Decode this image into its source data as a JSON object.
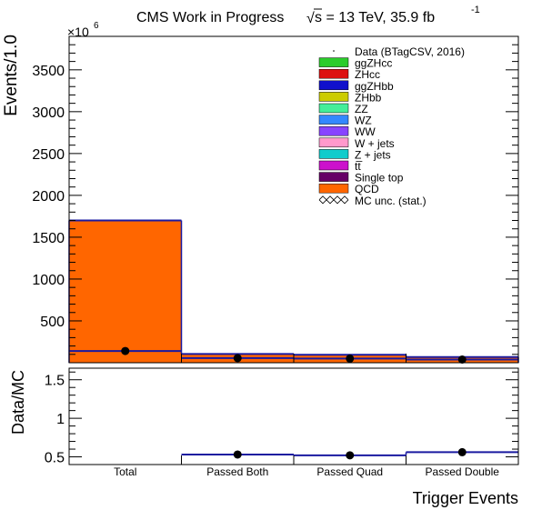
{
  "chart_data": [
    {
      "type": "bar",
      "title": "CMS Work in Progress",
      "subtitle": {
        "sqrt": "√",
        "s": "s = 13 TeV, 35.9 fb",
        "exp": "-1"
      },
      "ylabel": "Events/1.0",
      "y_multiplier": {
        "base": "×10",
        "exp": "6"
      },
      "ylim": [
        0,
        3900
      ],
      "yticks": [
        500,
        1000,
        1500,
        2000,
        2500,
        3000,
        3500
      ],
      "categories": [
        "Total",
        "Passed Both",
        "Passed Quad",
        "Passed Double"
      ],
      "stack_total": [
        1700,
        105,
        95,
        68
      ],
      "series": [
        {
          "name": "ggZHcc",
          "color": "#2bcc2b",
          "values": [
            0,
            0,
            0,
            0
          ]
        },
        {
          "name": "ZHcc",
          "color": "#dd1111",
          "values": [
            0,
            0,
            0,
            0
          ]
        },
        {
          "name": "ggZHbb",
          "color": "#1010cc",
          "values": [
            0,
            0,
            0,
            0
          ]
        },
        {
          "name": "ZHbb",
          "color": "#cccc00",
          "values": [
            0,
            0,
            0,
            0
          ]
        },
        {
          "name": "ZZ",
          "color": "#44ee99",
          "values": [
            0,
            0,
            0,
            0
          ]
        },
        {
          "name": "WZ",
          "color": "#3388ff",
          "values": [
            0,
            0,
            0,
            0
          ]
        },
        {
          "name": "WW",
          "color": "#8844ff",
          "values": [
            0,
            0,
            0,
            0
          ]
        },
        {
          "name": "W + jets",
          "color": "#ff99cc",
          "values": [
            0,
            0,
            0,
            0
          ]
        },
        {
          "name": "Z + jets",
          "color": "#11cccc",
          "values": [
            0,
            0,
            0,
            0
          ]
        },
        {
          "name": "tt̅",
          "color": "#cc11cc",
          "values": [
            0,
            0,
            0,
            0
          ]
        },
        {
          "name": "Single top",
          "color": "#660066",
          "values": [
            0,
            0,
            0,
            0
          ]
        },
        {
          "name": "QCD",
          "color": "#ff6600",
          "values": [
            1700,
            105,
            95,
            68
          ]
        }
      ],
      "data": {
        "name": "Data (BTagCSV, 2016)",
        "values": [
          140,
          55,
          50,
          38
        ]
      },
      "mc_unc": {
        "name": "MC unc. (stat.)"
      }
    },
    {
      "type": "scatter",
      "ylabel": "Data/MC",
      "xlabel": "Trigger Events",
      "ylim": [
        0.4,
        1.65
      ],
      "yticks": [
        0.5,
        1,
        1.5
      ],
      "categories": [
        "Total",
        "Passed Both",
        "Passed Quad",
        "Passed Double"
      ],
      "ratio": [
        null,
        0.53,
        0.52,
        0.56
      ]
    }
  ],
  "colors": {
    "mc_line": "#1a1aa0",
    "frame": "#000000"
  }
}
